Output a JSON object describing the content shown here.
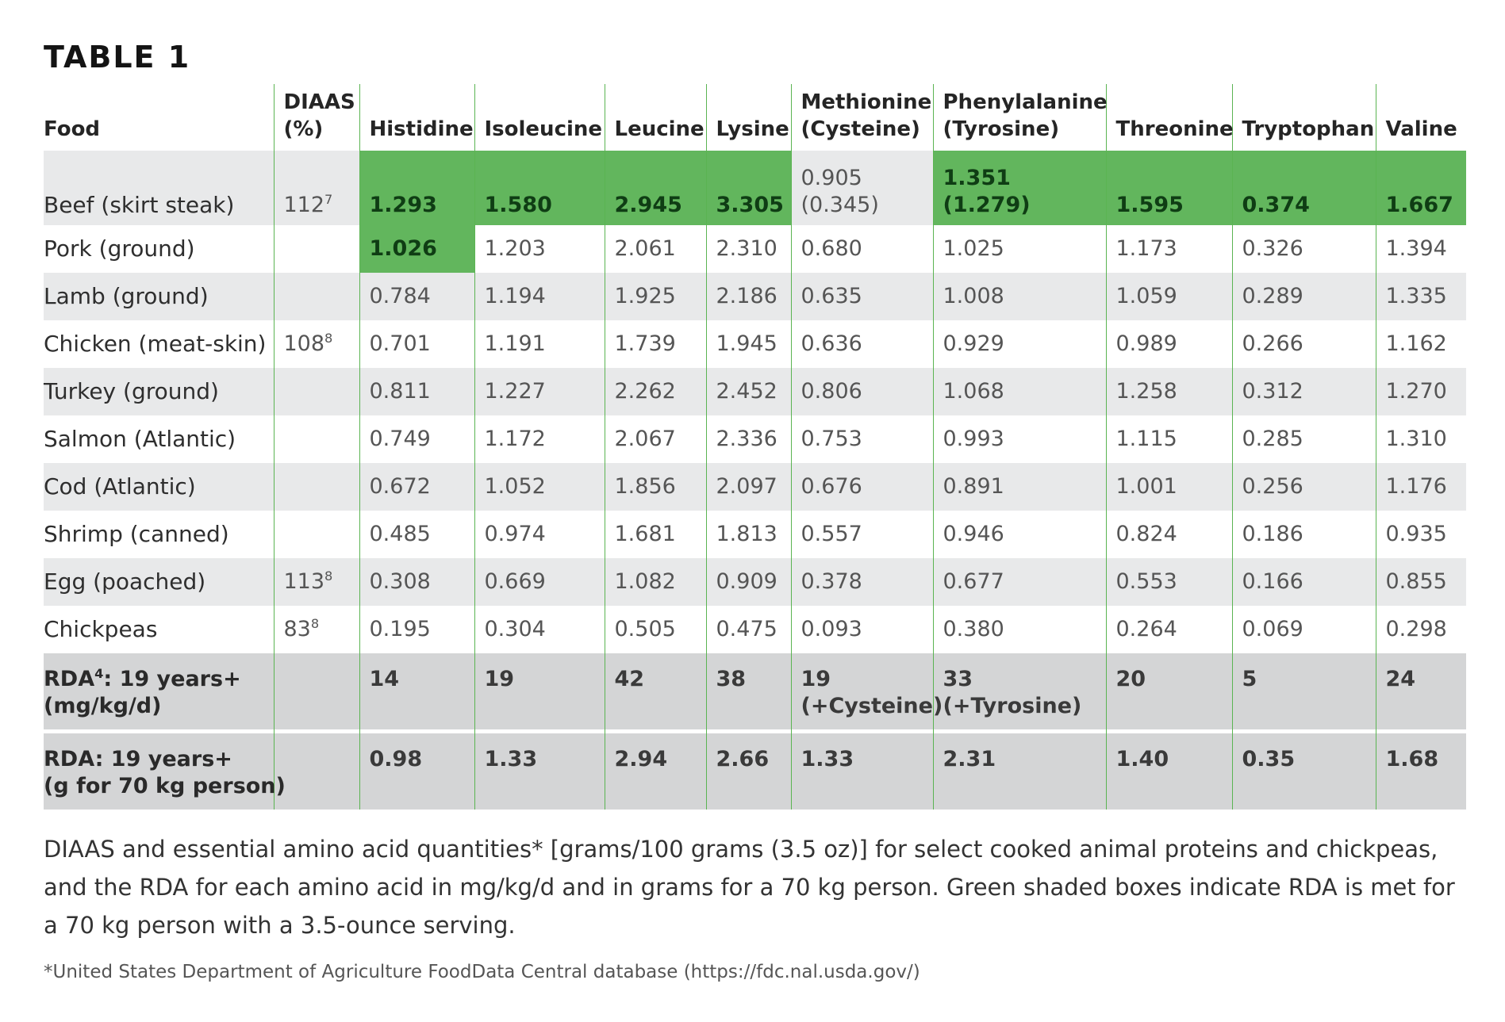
{
  "title": "TABLE 1",
  "columns": {
    "food": "Food",
    "diaas_line1": "DIAAS",
    "diaas_line2": "(%)",
    "histidine": "Histidine",
    "isoleucine": "Isoleucine",
    "leucine": "Leucine",
    "lysine": "Lysine",
    "methionine_line1": "Methionine",
    "methionine_line2": "(Cysteine)",
    "phenylalanine_line1": "Phenylalanine",
    "phenylalanine_line2": "(Tyrosine)",
    "threonine": "Threonine",
    "tryptophan": "Tryptophan",
    "valine": "Valine"
  },
  "rows": [
    {
      "food": "Beef (skirt steak)",
      "diaas": "112",
      "diaas_sup": "7",
      "histidine": "1.293",
      "isoleucine": "1.580",
      "leucine": "2.945",
      "lysine": "3.305",
      "methionine": "0.905",
      "methionine_paren": "(0.345)",
      "phenylalanine": "1.351",
      "phenylalanine_paren": "(1.279)",
      "threonine": "1.595",
      "tryptophan": "0.374",
      "valine": "1.667"
    },
    {
      "food": "Pork (ground)",
      "diaas": "",
      "diaas_sup": "",
      "histidine": "1.026",
      "isoleucine": "1.203",
      "leucine": "2.061",
      "lysine": "2.310",
      "methionine": "0.680",
      "phenylalanine": "1.025",
      "threonine": "1.173",
      "tryptophan": "0.326",
      "valine": "1.394"
    },
    {
      "food": "Lamb (ground)",
      "diaas": "",
      "diaas_sup": "",
      "histidine": "0.784",
      "isoleucine": "1.194",
      "leucine": "1.925",
      "lysine": "2.186",
      "methionine": "0.635",
      "phenylalanine": "1.008",
      "threonine": "1.059",
      "tryptophan": "0.289",
      "valine": "1.335"
    },
    {
      "food": "Chicken (meat-skin)",
      "diaas": "108",
      "diaas_sup": "8",
      "histidine": "0.701",
      "isoleucine": "1.191",
      "leucine": "1.739",
      "lysine": "1.945",
      "methionine": "0.636",
      "phenylalanine": "0.929",
      "threonine": "0.989",
      "tryptophan": "0.266",
      "valine": "1.162"
    },
    {
      "food": "Turkey (ground)",
      "diaas": "",
      "diaas_sup": "",
      "histidine": "0.811",
      "isoleucine": "1.227",
      "leucine": "2.262",
      "lysine": "2.452",
      "methionine": "0.806",
      "phenylalanine": "1.068",
      "threonine": "1.258",
      "tryptophan": "0.312",
      "valine": "1.270"
    },
    {
      "food": "Salmon (Atlantic)",
      "diaas": "",
      "diaas_sup": "",
      "histidine": "0.749",
      "isoleucine": "1.172",
      "leucine": "2.067",
      "lysine": "2.336",
      "methionine": "0.753",
      "phenylalanine": "0.993",
      "threonine": "1.115",
      "tryptophan": "0.285",
      "valine": "1.310"
    },
    {
      "food": "Cod (Atlantic)",
      "diaas": "",
      "diaas_sup": "",
      "histidine": "0.672",
      "isoleucine": "1.052",
      "leucine": "1.856",
      "lysine": "2.097",
      "methionine": "0.676",
      "phenylalanine": "0.891",
      "threonine": "1.001",
      "tryptophan": "0.256",
      "valine": "1.176"
    },
    {
      "food": "Shrimp (canned)",
      "diaas": "",
      "diaas_sup": "",
      "histidine": "0.485",
      "isoleucine": "0.974",
      "leucine": "1.681",
      "lysine": "1.813",
      "methionine": "0.557",
      "phenylalanine": "0.946",
      "threonine": "0.824",
      "tryptophan": "0.186",
      "valine": "0.935"
    },
    {
      "food": "Egg (poached)",
      "diaas": "113",
      "diaas_sup": "8",
      "histidine": "0.308",
      "isoleucine": "0.669",
      "leucine": "1.082",
      "lysine": "0.909",
      "methionine": "0.378",
      "phenylalanine": "0.677",
      "threonine": "0.553",
      "tryptophan": "0.166",
      "valine": "0.855"
    },
    {
      "food": "Chickpeas",
      "diaas": "83",
      "diaas_sup": "8",
      "histidine": "0.195",
      "isoleucine": "0.304",
      "leucine": "0.505",
      "lysine": "0.475",
      "methionine": "0.093",
      "phenylalanine": "0.380",
      "threonine": "0.264",
      "tryptophan": "0.069",
      "valine": "0.298"
    }
  ],
  "rda_mg": {
    "label_pre": "RDA",
    "label_sup": "4",
    "label_post": ": 19 years+",
    "label_line2": "(mg/kg/d)",
    "histidine": "14",
    "isoleucine": "19",
    "leucine": "42",
    "lysine": "38",
    "methionine": "19",
    "methionine_line2": "(+Cysteine)",
    "phenylalanine": "33",
    "phenylalanine_line2": "(+Tyrosine)",
    "threonine": "20",
    "tryptophan": "5",
    "valine": "24"
  },
  "rda_g": {
    "label_line1": "RDA: 19 years+",
    "label_line2": "(g for 70 kg person)",
    "histidine": "0.98",
    "isoleucine": "1.33",
    "leucine": "2.94",
    "lysine": "2.66",
    "methionine": "1.33",
    "phenylalanine": "2.31",
    "threonine": "1.40",
    "tryptophan": "0.35",
    "valine": "1.68"
  },
  "caption": "DIAAS and essential amino acid quantities* [grams/100 grams (3.5 oz)] for select cooked animal proteins and chickpeas, and the RDA for each amino acid in mg/kg/d and in grams for a 70 kg person. Green shaded boxes indicate RDA is met for a 70 kg person with a 3.5-ounce serving.",
  "footnote": "*United States Department of Agriculture FoodData Central database (https://fdc.nal.usda.gov/)",
  "colors": {
    "met_green": "#62b65d",
    "rule_green": "#5bb452",
    "stripe_gray": "#e8e9ea",
    "rda_gray": "#d4d5d6"
  }
}
